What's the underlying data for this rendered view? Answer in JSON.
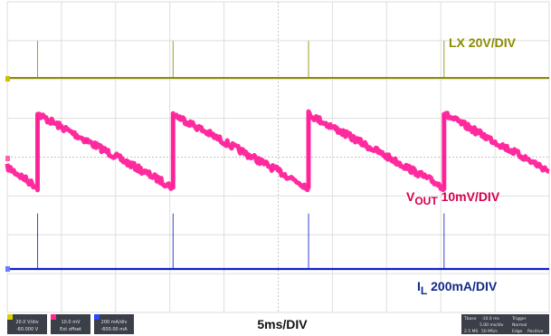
{
  "chart_data": {
    "type": "line",
    "timebase": "5ms/DIV",
    "period_ms": 12.5,
    "first_edge_ms": 2.8,
    "duration_ms": 50,
    "channels": [
      {
        "name": "LX",
        "scale_label": "LX 20V/DIV",
        "shape": "flat-with-spikes",
        "color": "#8c8c00",
        "label_color": "#8c8c00",
        "baseline": 0,
        "spike": 2
      },
      {
        "name": "VOUT",
        "scale_label_main": "V",
        "scale_label_sub": "OUT",
        "scale_label_rest": " 10mV/DIV",
        "shape": "sawtooth",
        "color": "#ff1493",
        "label_color": "#d6004f",
        "ramp_top": 0,
        "ramp_bottom": -2.4
      },
      {
        "name": "IL",
        "scale_label_main": "I",
        "scale_label_sub": "L",
        "scale_label_rest": " 200mA/DIV",
        "shape": "flat-with-spikes",
        "color": "#1020d0",
        "label_color": "#102a88",
        "baseline": 0,
        "spike": 3
      }
    ]
  },
  "bottom_bar": {
    "timebase_label": "5ms/DIV",
    "ch1_label": "20.0 V/div",
    "ch1_value": "-60.000 V",
    "ch2_label": "10.0 mV",
    "ch2_value": "Ext offset",
    "ch3_label": "200 mA/div",
    "ch3_value": "-600.00 mA",
    "tbase_title": "Tbase",
    "tbase_value": "-10.0 ms",
    "trigger_title": "Trigger",
    "trigger_rate": "5.00 ms/div",
    "trigger_mode": "Normal",
    "samples": "2.5 MS",
    "sample_rate": "50 MS/s",
    "edge": "Edge",
    "polarity": "Positive"
  }
}
